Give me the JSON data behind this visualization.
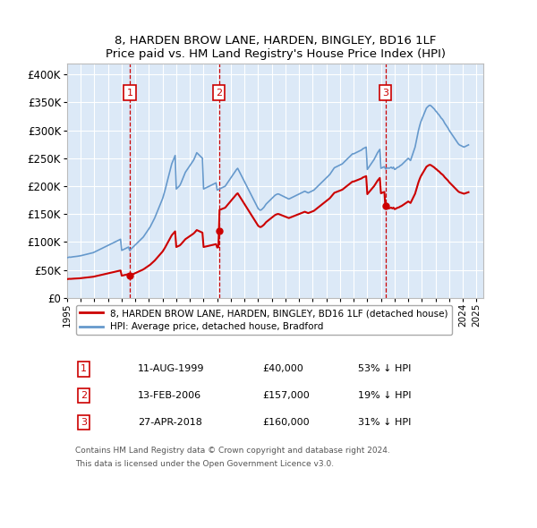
{
  "title": "8, HARDEN BROW LANE, HARDEN, BINGLEY, BD16 1LF",
  "subtitle": "Price paid vs. HM Land Registry's House Price Index (HPI)",
  "ylim": [
    0,
    420000
  ],
  "yticks": [
    0,
    50000,
    100000,
    150000,
    200000,
    250000,
    300000,
    350000,
    400000
  ],
  "xlim_start": 1995.0,
  "xlim_end": 2025.5,
  "plot_bg_color": "#dce9f7",
  "grid_color": "#ffffff",
  "sale_color": "#cc0000",
  "hpi_color": "#6699cc",
  "sale_label": "8, HARDEN BROW LANE, HARDEN, BINGLEY, BD16 1LF (detached house)",
  "hpi_label": "HPI: Average price, detached house, Bradford",
  "transactions": [
    {
      "num": 1,
      "date": "11-AUG-1999",
      "price": 40000,
      "pct": "53% ↓ HPI",
      "year": 1999.61
    },
    {
      "num": 2,
      "date": "13-FEB-2006",
      "price": 157000,
      "pct": "19% ↓ HPI",
      "year": 2006.12
    },
    {
      "num": 3,
      "date": "27-APR-2018",
      "price": 160000,
      "pct": "31% ↓ HPI",
      "year": 2018.32
    }
  ],
  "footer": [
    "Contains HM Land Registry data © Crown copyright and database right 2024.",
    "This data is licensed under the Open Government Licence v3.0."
  ]
}
